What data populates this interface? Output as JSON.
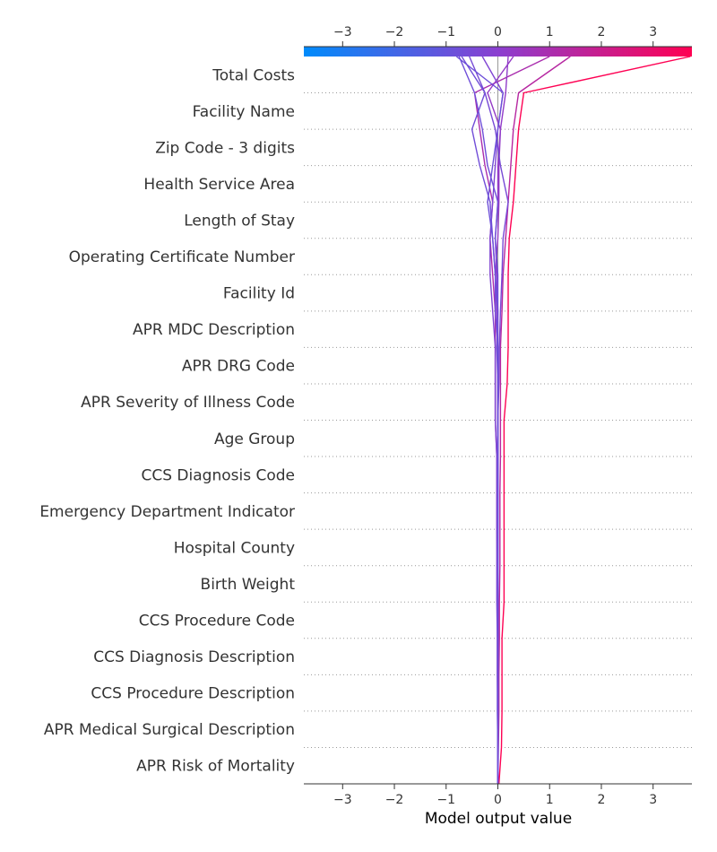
{
  "chart_data": {
    "type": "line",
    "title": "",
    "xlabel": "Model output value",
    "ylabel": "",
    "xlim": [
      -3.75,
      3.75
    ],
    "xticks": [
      -3,
      -2,
      -1,
      0,
      1,
      2,
      3
    ],
    "xtick_labels_bottom": [
      "−3",
      "−2",
      "−1",
      "0",
      "1",
      "2",
      "3"
    ],
    "xtick_labels_top": [
      "−3",
      "−2",
      "−1",
      "0",
      "1",
      "2",
      "3"
    ],
    "base_value": 0,
    "grid": "dotted-horizontal",
    "colorbar": {
      "position": "top",
      "colors": [
        "#008bfb",
        "#8b3fd0",
        "#ff0052"
      ],
      "range": [
        -3.75,
        3.75
      ]
    },
    "features": [
      "Total Costs",
      "Facility Name",
      "Zip Code - 3 digits",
      "Health Service Area",
      "Length of Stay",
      "Operating Certificate Number",
      "Facility Id",
      "APR MDC Description",
      "APR DRG Code",
      "APR Severity of Illness Code",
      "Age Group",
      "CCS Diagnosis Code",
      "Emergency Department Indicator",
      "Hospital County",
      "Birth Weight",
      "CCS Procedure Code",
      "CCS Diagnosis Description",
      "CCS Procedure Description",
      "APR Medical Surgical Description",
      "APR Risk of Mortality"
    ],
    "series": [
      {
        "output": 3.72,
        "values": [
          3.72,
          0.5,
          0.4,
          0.35,
          0.3,
          0.22,
          0.2,
          0.2,
          0.2,
          0.18,
          0.12,
          0.12,
          0.12,
          0.12,
          0.12,
          0.12,
          0.08,
          0.08,
          0.08,
          0.07,
          0.02
        ]
      },
      {
        "output": 1.4,
        "values": [
          1.4,
          0.4,
          0.3,
          0.25,
          0.2,
          0.15,
          0.1,
          0.08,
          0.05,
          0.05,
          0.05,
          0.05,
          0.04,
          0.04,
          0.04,
          0.03,
          0.03,
          0.02,
          0.02,
          0.01,
          0.0
        ]
      },
      {
        "output": 1.0,
        "values": [
          1.0,
          -0.45,
          -0.35,
          -0.25,
          -0.1,
          -0.15,
          -0.1,
          -0.05,
          -0.05,
          -0.05,
          -0.05,
          -0.02,
          -0.02,
          -0.02,
          -0.01,
          -0.01,
          -0.01,
          -0.01,
          0.0,
          0.0,
          0.0
        ]
      },
      {
        "output": 0.3,
        "values": [
          0.3,
          -0.2,
          0.05,
          0.02,
          0.02,
          0.0,
          -0.05,
          -0.02,
          0.0,
          0.0,
          0.0,
          0.0,
          0.0,
          0.0,
          0.0,
          0.0,
          0.0,
          0.0,
          0.0,
          0.0,
          0.0
        ]
      },
      {
        "output": 0.2,
        "values": [
          0.2,
          0.15,
          0.05,
          0.0,
          0.0,
          -0.05,
          -0.02,
          0.0,
          0.0,
          0.0,
          0.0,
          0.0,
          0.0,
          0.0,
          0.0,
          0.0,
          0.0,
          0.0,
          0.0,
          0.0,
          0.0
        ]
      },
      {
        "output": -0.3,
        "values": [
          -0.3,
          0.1,
          0.0,
          -0.05,
          -0.1,
          -0.15,
          -0.15,
          -0.1,
          -0.05,
          -0.05,
          -0.05,
          -0.02,
          -0.02,
          -0.02,
          -0.02,
          -0.02,
          -0.01,
          -0.01,
          -0.01,
          0.0,
          0.0
        ]
      },
      {
        "output": -0.55,
        "values": [
          -0.55,
          -0.25,
          -0.05,
          0.05,
          0.2,
          0.1,
          0.08,
          0.05,
          0.03,
          0.02,
          0.0,
          0.0,
          0.0,
          0.0,
          0.0,
          0.0,
          0.0,
          0.0,
          0.0,
          0.0,
          0.0
        ]
      },
      {
        "output": -0.7,
        "values": [
          -0.7,
          -0.25,
          -0.5,
          -0.35,
          -0.15,
          -0.1,
          -0.05,
          -0.05,
          0.0,
          0.0,
          0.0,
          0.0,
          0.0,
          0.0,
          0.0,
          0.0,
          0.0,
          0.0,
          0.0,
          0.0,
          0.0
        ]
      },
      {
        "output": -0.75,
        "values": [
          -0.75,
          -0.45,
          -0.3,
          -0.2,
          0.0,
          -0.05,
          0.0,
          0.0,
          -0.02,
          0.0,
          0.0,
          0.0,
          0.0,
          0.0,
          0.0,
          0.0,
          0.0,
          0.0,
          0.0,
          0.0,
          0.0
        ]
      },
      {
        "output": -0.8,
        "values": [
          -0.8,
          0.1,
          0.0,
          -0.1,
          -0.2,
          -0.1,
          -0.05,
          0.0,
          0.0,
          0.0,
          0.0,
          0.0,
          0.0,
          0.0,
          0.0,
          0.0,
          0.0,
          0.0,
          0.0,
          0.0,
          0.0
        ]
      }
    ]
  }
}
